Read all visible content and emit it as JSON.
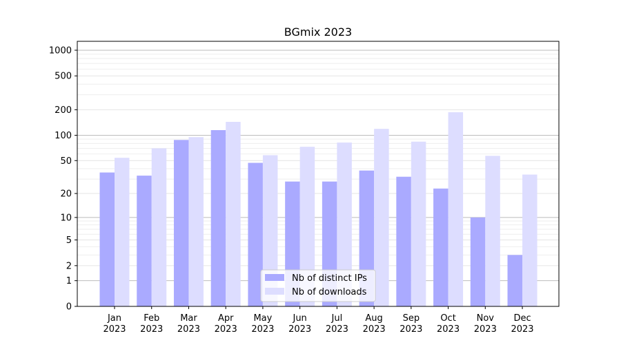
{
  "chart_data": {
    "type": "bar",
    "title": "BGmix 2023",
    "xlabel": "",
    "ylabel": "",
    "yscale": "symlog (log10(v+1))",
    "ylim": [
      0,
      1200
    ],
    "yticks": [
      0,
      1,
      2,
      5,
      10,
      20,
      50,
      100,
      200,
      500,
      1000
    ],
    "grid": true,
    "legend_position": "lower center",
    "categories": [
      "Jan\n2023",
      "Feb\n2023",
      "Mar\n2023",
      "Apr\n2023",
      "May\n2023",
      "Jun\n2023",
      "Jul\n2023",
      "Aug\n2023",
      "Sep\n2023",
      "Oct\n2023",
      "Nov\n2023",
      "Dec\n2023"
    ],
    "series": [
      {
        "name": "Nb of distinct IPs",
        "color": "#aaaaff",
        "values": [
          36,
          33,
          88,
          115,
          47,
          28,
          28,
          38,
          32,
          23,
          10,
          3
        ]
      },
      {
        "name": "Nb of downloads",
        "color": "#ddddff",
        "values": [
          54,
          70,
          95,
          144,
          58,
          73,
          82,
          119,
          84,
          187,
          57,
          34
        ]
      }
    ]
  }
}
